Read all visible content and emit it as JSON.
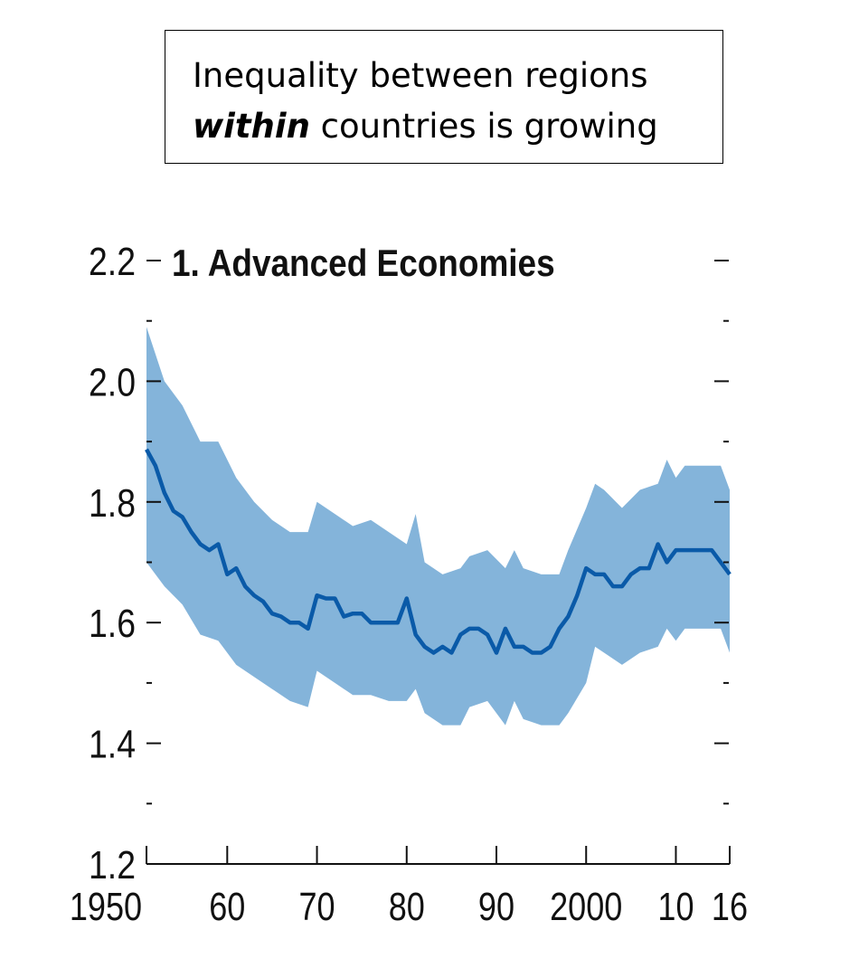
{
  "annotation": {
    "line1": "Inequality between regions",
    "line2_emph": "within",
    "line2_rest": " countries  is growing"
  },
  "chart_data": {
    "type": "area",
    "title": "1. Advanced Economies",
    "xlim": [
      1951,
      2016
    ],
    "ylim": [
      1.2,
      2.2
    ],
    "y_ticks": [
      1.2,
      1.4,
      1.6,
      1.8,
      2.0,
      2.2
    ],
    "y_minor_ticks": [
      1.3,
      1.5,
      1.7,
      1.9,
      2.1
    ],
    "x_ticks": [
      {
        "v": 1951,
        "label": "1950"
      },
      {
        "v": 1960,
        "label": "60"
      },
      {
        "v": 1970,
        "label": "70"
      },
      {
        "v": 1980,
        "label": "80"
      },
      {
        "v": 1990,
        "label": "90"
      },
      {
        "v": 2000,
        "label": "2000"
      },
      {
        "v": 2010,
        "label": "10"
      },
      {
        "v": 2016,
        "label": "16"
      }
    ],
    "colors": {
      "line": "#0a5aa8",
      "band": "#84b4da"
    },
    "median": {
      "x": [
        1951,
        1952,
        1953,
        1954,
        1955,
        1956,
        1957,
        1958,
        1959,
        1960,
        1961,
        1962,
        1963,
        1964,
        1965,
        1966,
        1967,
        1968,
        1969,
        1970,
        1971,
        1972,
        1973,
        1974,
        1975,
        1976,
        1977,
        1978,
        1979,
        1980,
        1981,
        1982,
        1983,
        1984,
        1985,
        1986,
        1987,
        1988,
        1989,
        1990,
        1991,
        1992,
        1993,
        1994,
        1995,
        1996,
        1997,
        1998,
        1999,
        2000,
        2001,
        2002,
        2003,
        2004,
        2005,
        2006,
        2007,
        2008,
        2009,
        2010,
        2011,
        2012,
        2013,
        2014,
        2016
      ],
      "y": [
        1.887,
        1.86,
        1.815,
        1.785,
        1.775,
        1.75,
        1.73,
        1.72,
        1.73,
        1.68,
        1.69,
        1.66,
        1.645,
        1.635,
        1.615,
        1.61,
        1.6,
        1.6,
        1.59,
        1.645,
        1.64,
        1.64,
        1.61,
        1.615,
        1.615,
        1.6,
        1.6,
        1.6,
        1.6,
        1.64,
        1.58,
        1.56,
        1.55,
        1.56,
        1.55,
        1.58,
        1.59,
        1.59,
        1.58,
        1.55,
        1.59,
        1.56,
        1.56,
        1.55,
        1.55,
        1.56,
        1.59,
        1.61,
        1.645,
        1.69,
        1.68,
        1.68,
        1.66,
        1.66,
        1.68,
        1.69,
        1.69,
        1.73,
        1.7,
        1.72,
        1.72,
        1.72,
        1.72,
        1.72,
        1.68
      ]
    },
    "band": {
      "x": [
        1951,
        1953,
        1955,
        1957,
        1959,
        1961,
        1963,
        1965,
        1967,
        1969,
        1970,
        1972,
        1974,
        1976,
        1978,
        1980,
        1981,
        1982,
        1984,
        1986,
        1987,
        1989,
        1991,
        1992,
        1993,
        1995,
        1997,
        1998,
        2000,
        2001,
        2002,
        2004,
        2006,
        2008,
        2009,
        2010,
        2011,
        2015,
        2016
      ],
      "upper": [
        2.09,
        2.0,
        1.96,
        1.9,
        1.9,
        1.84,
        1.8,
        1.77,
        1.75,
        1.75,
        1.8,
        1.78,
        1.76,
        1.77,
        1.75,
        1.73,
        1.78,
        1.7,
        1.68,
        1.69,
        1.71,
        1.72,
        1.69,
        1.72,
        1.69,
        1.68,
        1.68,
        1.72,
        1.79,
        1.83,
        1.82,
        1.79,
        1.82,
        1.83,
        1.87,
        1.84,
        1.86,
        1.86,
        1.82
      ],
      "lower": [
        1.7,
        1.66,
        1.63,
        1.58,
        1.57,
        1.53,
        1.51,
        1.49,
        1.47,
        1.46,
        1.52,
        1.5,
        1.48,
        1.48,
        1.47,
        1.47,
        1.49,
        1.45,
        1.43,
        1.43,
        1.46,
        1.47,
        1.43,
        1.47,
        1.44,
        1.43,
        1.43,
        1.45,
        1.5,
        1.56,
        1.55,
        1.53,
        1.55,
        1.56,
        1.59,
        1.57,
        1.59,
        1.59,
        1.55
      ]
    }
  }
}
